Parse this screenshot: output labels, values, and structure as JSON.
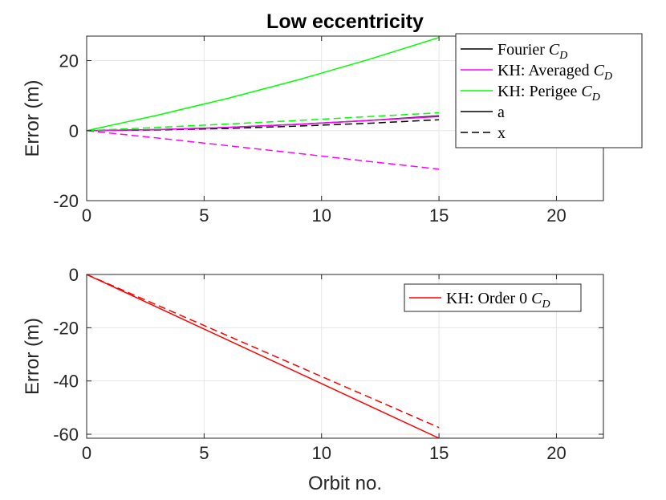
{
  "figure_title": "Low eccentricity",
  "chart_data": [
    {
      "type": "line",
      "title": "Low eccentricity",
      "xlabel": "",
      "ylabel": "Error (m)",
      "xlim": [
        0,
        22
      ],
      "ylim": [
        -20,
        27
      ],
      "xticks": [
        0,
        5,
        10,
        15,
        20
      ],
      "yticks": [
        -20,
        0,
        20
      ],
      "xtick_labels": [
        "0",
        "5",
        "10",
        "15",
        "20"
      ],
      "ytick_labels": [
        "-20",
        "0",
        "20"
      ],
      "grid": true,
      "legend_position": "top-right",
      "legend": [
        {
          "label": "Fourier ",
          "math": "C",
          "sub": "D",
          "color": "#000000",
          "style": "solid"
        },
        {
          "label": "KH: Averaged ",
          "math": "C",
          "sub": "D",
          "color": "#ff00ff",
          "style": "solid"
        },
        {
          "label": "KH: Perigee ",
          "math": "C",
          "sub": "D",
          "color": "#00ff00",
          "style": "solid"
        },
        {
          "label": "a",
          "math": "",
          "sub": "",
          "color": "#000000",
          "style": "solid"
        },
        {
          "label": "x",
          "math": "",
          "sub": "",
          "color": "#000000",
          "style": "dashed"
        }
      ],
      "series": [
        {
          "name": "Fourier CD - a",
          "color": "#000000",
          "style": "solid",
          "x": [
            0,
            3,
            6,
            9,
            12,
            15
          ],
          "y": [
            0,
            0.3,
            0.9,
            1.8,
            2.9,
            4.2
          ]
        },
        {
          "name": "Fourier CD - x",
          "color": "#000000",
          "style": "dashed",
          "x": [
            0,
            3,
            6,
            9,
            12,
            15
          ],
          "y": [
            0,
            0.2,
            0.6,
            1.3,
            2.1,
            3.1
          ]
        },
        {
          "name": "KH: Averaged CD - a",
          "color": "#ff00ff",
          "style": "solid",
          "x": [
            0,
            3,
            6,
            9,
            12,
            15
          ],
          "y": [
            0,
            0.3,
            0.9,
            1.8,
            2.9,
            4.0
          ]
        },
        {
          "name": "KH: Averaged CD - x",
          "color": "#ff00ff",
          "style": "dashed",
          "x": [
            0,
            3,
            6,
            9,
            12,
            15
          ],
          "y": [
            0,
            -2.1,
            -4.3,
            -6.5,
            -8.8,
            -11.0
          ]
        },
        {
          "name": "KH: Perigee CD - a",
          "color": "#00ff00",
          "style": "solid",
          "x": [
            0,
            3,
            6,
            9,
            12,
            15
          ],
          "y": [
            0,
            4.4,
            9.2,
            14.5,
            20.3,
            26.6
          ]
        },
        {
          "name": "KH: Perigee CD - x",
          "color": "#00ff00",
          "style": "dashed",
          "x": [
            0,
            3,
            6,
            9,
            12,
            15
          ],
          "y": [
            0,
            0.9,
            1.9,
            2.9,
            4.0,
            5.1
          ]
        }
      ]
    },
    {
      "type": "line",
      "title": "",
      "xlabel": "Orbit no.",
      "ylabel": "Error (m)",
      "xlim": [
        0,
        22
      ],
      "ylim": [
        -61.5,
        0
      ],
      "xticks": [
        0,
        5,
        10,
        15,
        20
      ],
      "yticks": [
        -60,
        -40,
        -20,
        0
      ],
      "xtick_labels": [
        "0",
        "5",
        "10",
        "15",
        "20"
      ],
      "ytick_labels": [
        "-60",
        "-40",
        "-20",
        "0"
      ],
      "grid": true,
      "legend_position": "top-right",
      "legend": [
        {
          "label": "KH: Order 0 ",
          "math": "C",
          "sub": "D",
          "color": "#ff0000",
          "style": "solid"
        }
      ],
      "series": [
        {
          "name": "KH: Order 0 CD - a",
          "color": "#ff0000",
          "style": "solid",
          "x": [
            0,
            15
          ],
          "y": [
            0,
            -61.5
          ]
        },
        {
          "name": "KH: Order 0 CD - x",
          "color": "#ff0000",
          "style": "dashed",
          "x": [
            0,
            15
          ],
          "y": [
            0,
            -57.5
          ]
        }
      ]
    }
  ]
}
